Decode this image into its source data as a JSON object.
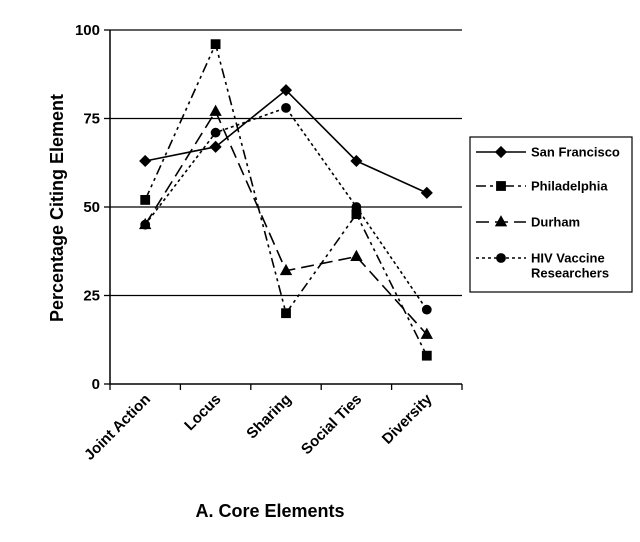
{
  "chart_data": {
    "type": "line",
    "categories": [
      "Joint Action",
      "Locus",
      "Sharing",
      "Social Ties",
      "Diversity"
    ],
    "xlabel": "A. Core Elements",
    "ylabel": "Percentage Citing Element",
    "ylim": [
      0,
      100
    ],
    "yticks": [
      0,
      25,
      50,
      75,
      100
    ],
    "grid": "horizontal",
    "legend_position": "right",
    "series": [
      {
        "name": "San Francisco",
        "marker": "diamond",
        "dash": "solid",
        "color": "#000000",
        "values": [
          63,
          67,
          83,
          63,
          54
        ]
      },
      {
        "name": "Philadelphia",
        "marker": "square",
        "dash": "dash-dot-dot",
        "color": "#000000",
        "values": [
          52,
          96,
          20,
          48,
          8
        ]
      },
      {
        "name": "Durham",
        "marker": "triangle",
        "dash": "long-dash",
        "color": "#000000",
        "values": [
          45,
          77,
          32,
          36,
          14
        ]
      },
      {
        "name": "HIV Vaccine Researchers",
        "marker": "circle",
        "dash": "dotted",
        "color": "#000000",
        "values": [
          45,
          71,
          78,
          50,
          21
        ]
      }
    ]
  }
}
